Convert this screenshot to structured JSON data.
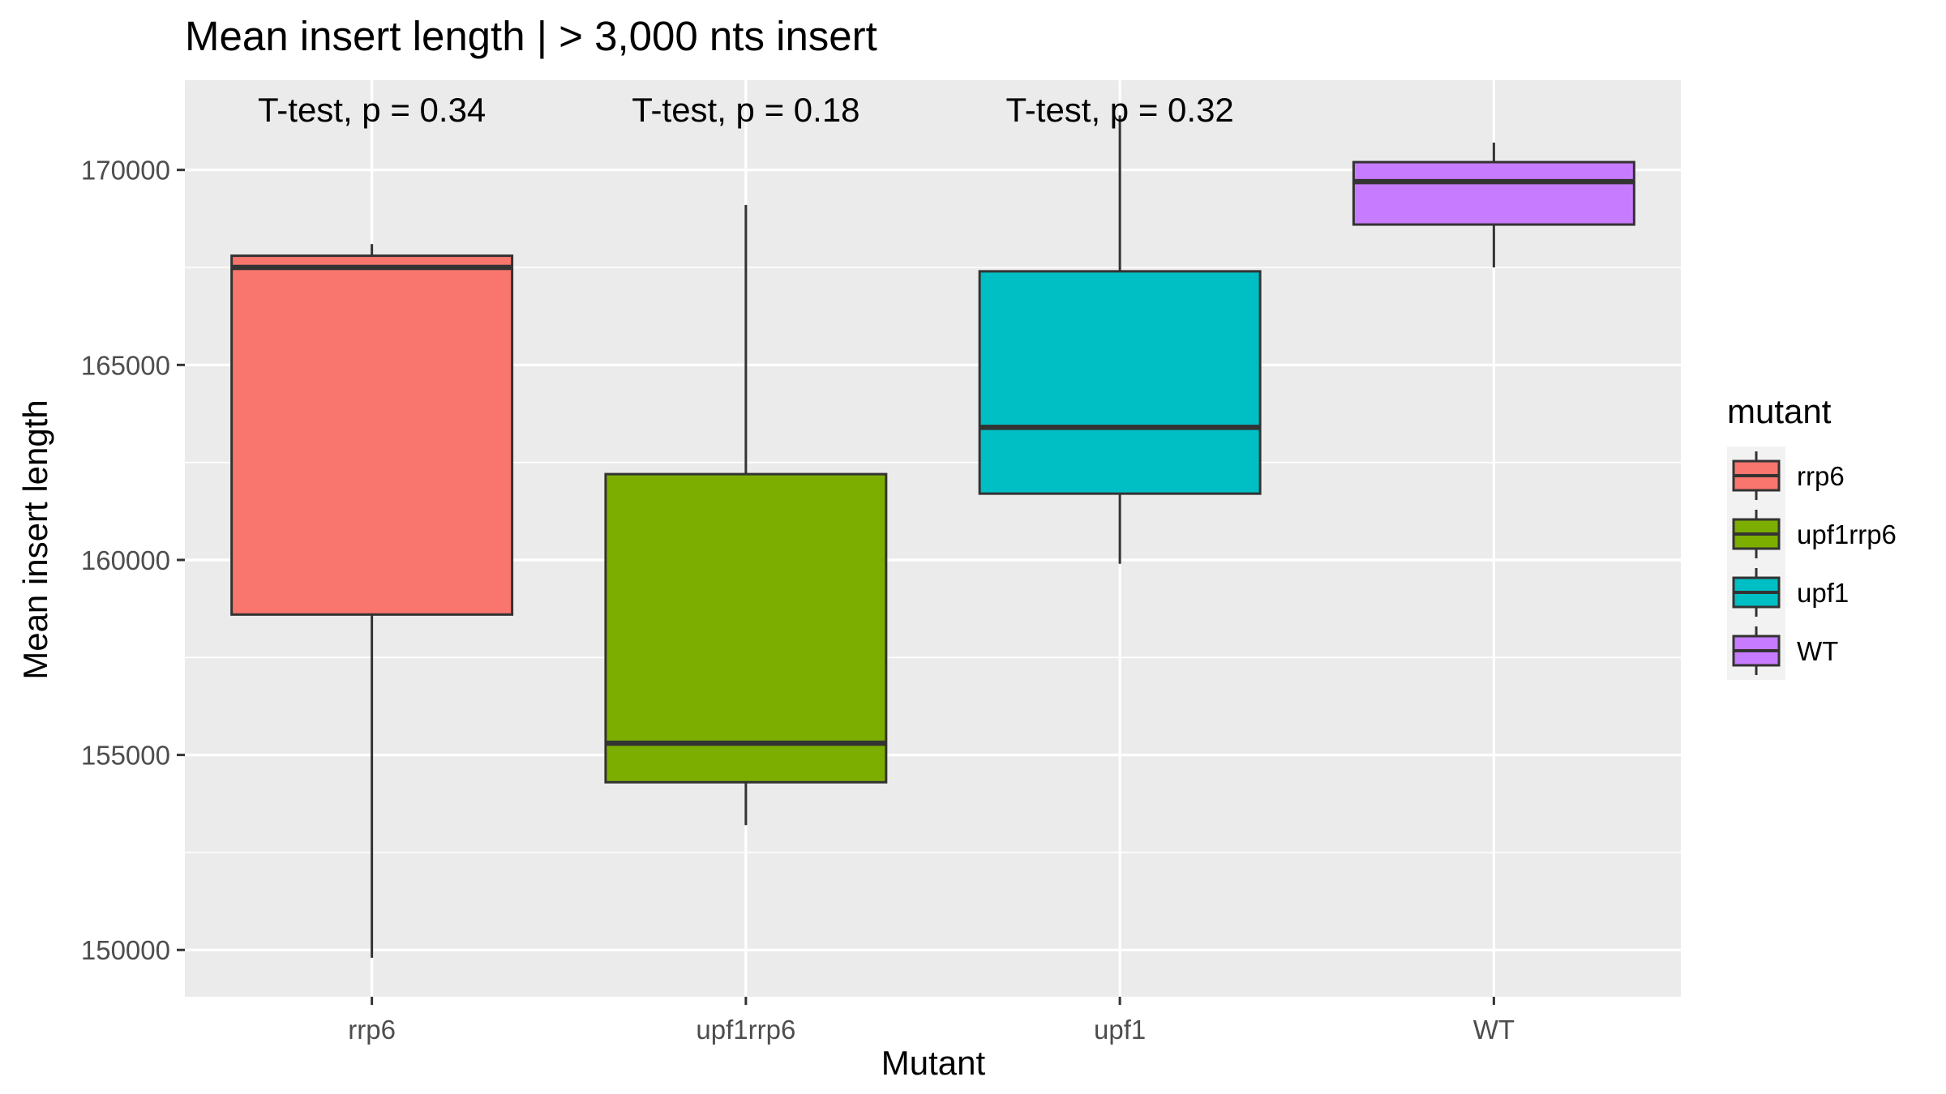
{
  "chart_data": {
    "type": "box",
    "title": "Mean insert length | > 3,000 nts insert",
    "xlabel": "Mutant",
    "ylabel": "Mean insert length",
    "categories": [
      "rrp6",
      "upf1rrp6",
      "upf1",
      "WT"
    ],
    "ylim": [
      148800,
      172300
    ],
    "yticks": [
      150000,
      155000,
      160000,
      165000,
      170000
    ],
    "ytick_labels": [
      "150000",
      "155000",
      "160000",
      "165000",
      "170000"
    ],
    "grid": true,
    "boxes": [
      {
        "category": "rrp6",
        "whisker_low": 149800,
        "q1": 158600,
        "median": 167500,
        "q3": 167800,
        "whisker_high": 168100,
        "color": "#F8766D"
      },
      {
        "category": "upf1rrp6",
        "whisker_low": 153200,
        "q1": 154300,
        "median": 155300,
        "q3": 162200,
        "whisker_high": 169100,
        "color": "#7CAE00"
      },
      {
        "category": "upf1",
        "whisker_low": 159900,
        "q1": 161700,
        "median": 163400,
        "q3": 167400,
        "whisker_high": 171400,
        "color": "#00BFC4"
      },
      {
        "category": "WT",
        "whisker_low": 167500,
        "q1": 168600,
        "median": 169700,
        "q3": 170200,
        "whisker_high": 170700,
        "color": "#C77CFF"
      }
    ],
    "annotations": [
      {
        "category": "rrp6",
        "text": "T-test, p = 0.34"
      },
      {
        "category": "upf1rrp6",
        "text": "T-test, p = 0.18"
      },
      {
        "category": "upf1",
        "text": "T-test, p = 0.32"
      }
    ],
    "legend": {
      "title": "mutant",
      "position": "right",
      "entries": [
        {
          "label": "rrp6",
          "color": "#F8766D"
        },
        {
          "label": "upf1rrp6",
          "color": "#7CAE00"
        },
        {
          "label": "upf1",
          "color": "#00BFC4"
        },
        {
          "label": "WT",
          "color": "#C77CFF"
        }
      ]
    },
    "panel_background": "#EBEBEB",
    "grid_color": "#FFFFFF",
    "outline_color": "#333333"
  }
}
